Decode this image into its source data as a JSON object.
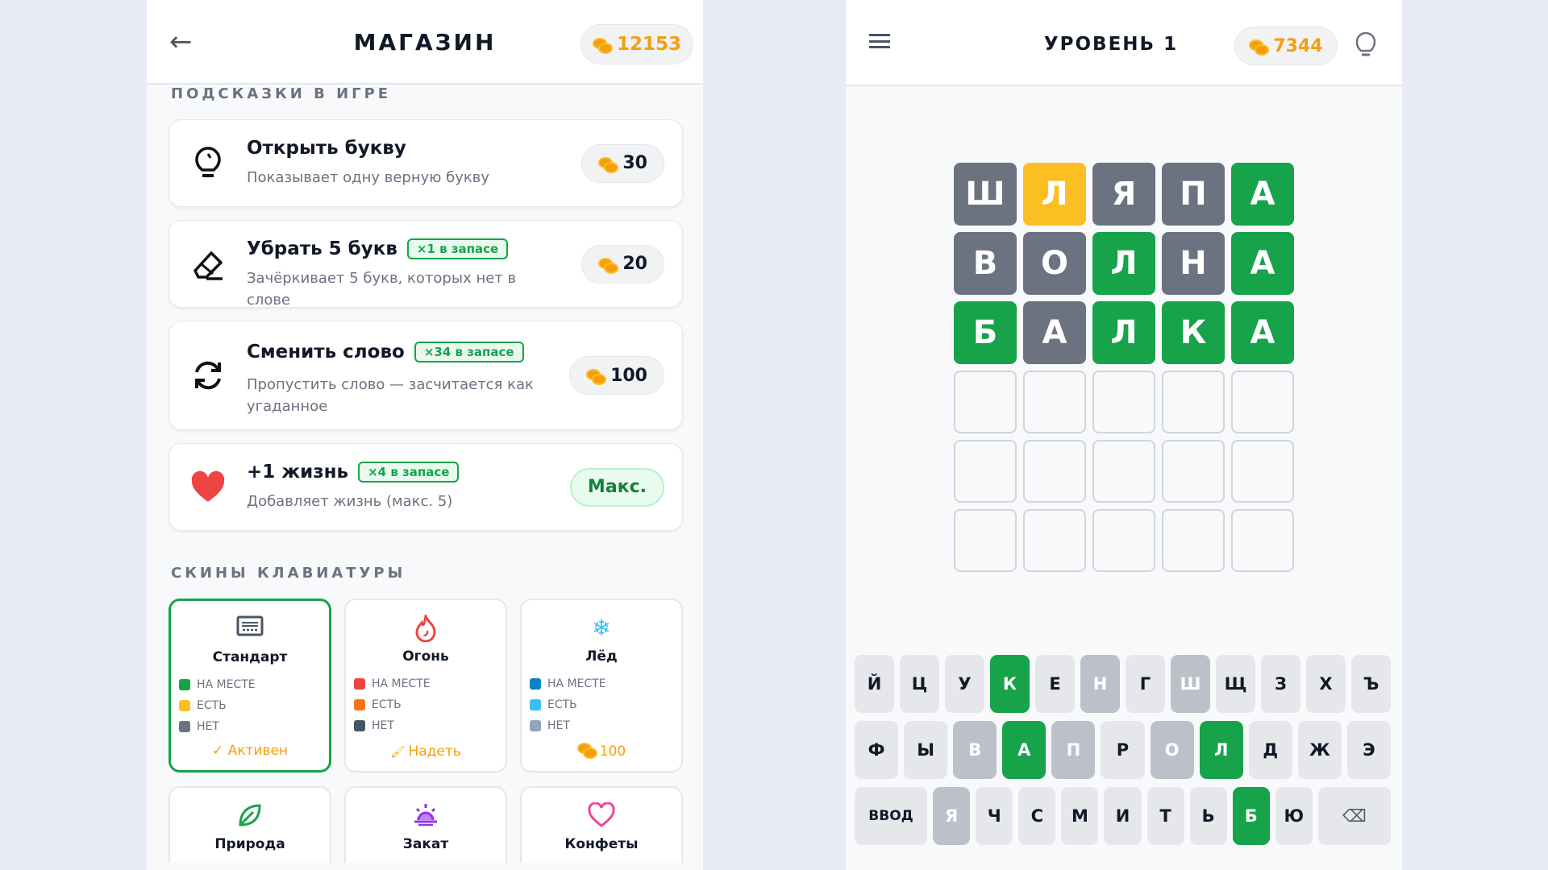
{
  "colors": {
    "correct": "#16a34a",
    "present": "#fbbf24",
    "absent": "#6b7280",
    "coin": "#f59e0b"
  },
  "shop": {
    "title": "МАГАЗИН",
    "coins": "12153",
    "back_icon": "arrow-left-icon",
    "hints_section": "ПОДСКАЗКИ В ИГРЕ",
    "hints": [
      {
        "icon": "lightbulb-icon",
        "title": "Открыть букву",
        "badge": "",
        "desc": "Показывает одну верную букву",
        "price": "30"
      },
      {
        "icon": "eraser-icon",
        "title": "Убрать 5 букв",
        "badge": "×1 в запасе",
        "desc": "Зачёркивает 5 букв, которых нет в слове",
        "price": "20"
      },
      {
        "icon": "refresh-icon",
        "title": "Сменить слово",
        "badge": "×34 в запасе",
        "desc": "Пропустить слово — засчитается как угаданное",
        "price": "100"
      },
      {
        "icon": "heart-icon",
        "title": "+1 жизнь",
        "badge": "×4 в запасе",
        "desc": "Добавляет жизнь (макс. 5)",
        "price": "Макс."
      }
    ],
    "skins_section": "СКИНЫ КЛАВИАТУРЫ",
    "legend": [
      "НА МЕСТЕ",
      "ЕСТЬ",
      "НЕТ"
    ],
    "skins": [
      {
        "name": "Стандарт",
        "icon": "keyboard-icon",
        "colors": [
          "#16a34a",
          "#fbbf24",
          "#6b7280"
        ],
        "action": "✓ Активен",
        "active": true
      },
      {
        "name": "Огонь",
        "icon": "fire-icon",
        "colors": [
          "#ef4444",
          "#f97316",
          "#475569"
        ],
        "action": "Надеть",
        "active": false
      },
      {
        "name": "Лёд",
        "icon": "snowflake-icon",
        "colors": [
          "#0284c7",
          "#38bdf8",
          "#94a3b8"
        ],
        "action": "100",
        "active": false
      },
      {
        "name": "Природа",
        "icon": "leaf-icon"
      },
      {
        "name": "Закат",
        "icon": "sunset-icon"
      },
      {
        "name": "Конфеты",
        "icon": "heart-outline-icon"
      }
    ]
  },
  "game": {
    "title": "УРОВЕНЬ 1",
    "coins": "7344",
    "board": [
      [
        [
          "Ш",
          "absent"
        ],
        [
          "Л",
          "present"
        ],
        [
          "Я",
          "absent"
        ],
        [
          "П",
          "absent"
        ],
        [
          "А",
          "correct"
        ]
      ],
      [
        [
          "В",
          "absent"
        ],
        [
          "О",
          "absent"
        ],
        [
          "Л",
          "correct"
        ],
        [
          "Н",
          "absent"
        ],
        [
          "А",
          "correct"
        ]
      ],
      [
        [
          "Б",
          "correct"
        ],
        [
          "А",
          "absent"
        ],
        [
          "Л",
          "correct"
        ],
        [
          "К",
          "correct"
        ],
        [
          "А",
          "correct"
        ]
      ],
      [
        [
          "",
          ""
        ],
        [
          "",
          ""
        ],
        [
          "",
          ""
        ],
        [
          "",
          ""
        ],
        [
          "",
          ""
        ]
      ],
      [
        [
          "",
          ""
        ],
        [
          "",
          ""
        ],
        [
          "",
          ""
        ],
        [
          "",
          ""
        ],
        [
          "",
          ""
        ]
      ],
      [
        [
          "",
          ""
        ],
        [
          "",
          ""
        ],
        [
          "",
          ""
        ],
        [
          "",
          ""
        ],
        [
          "",
          ""
        ]
      ]
    ],
    "keyboard": [
      [
        [
          "Й",
          ""
        ],
        [
          "Ц",
          ""
        ],
        [
          "У",
          ""
        ],
        [
          "К",
          "correct"
        ],
        [
          "Е",
          ""
        ],
        [
          "Н",
          "absent"
        ],
        [
          "Г",
          ""
        ],
        [
          "Ш",
          "absent"
        ],
        [
          "Щ",
          ""
        ],
        [
          "З",
          ""
        ],
        [
          "Х",
          ""
        ],
        [
          "Ъ",
          ""
        ]
      ],
      [
        [
          "Ф",
          ""
        ],
        [
          "Ы",
          ""
        ],
        [
          "В",
          "absent"
        ],
        [
          "А",
          "correct"
        ],
        [
          "П",
          "absent"
        ],
        [
          "Р",
          ""
        ],
        [
          "О",
          "absent"
        ],
        [
          "Л",
          "correct"
        ],
        [
          "Д",
          ""
        ],
        [
          "Ж",
          ""
        ],
        [
          "Э",
          ""
        ]
      ],
      [
        [
          "ВВОД",
          ""
        ],
        [
          "Я",
          "absent"
        ],
        [
          "Ч",
          ""
        ],
        [
          "С",
          ""
        ],
        [
          "М",
          ""
        ],
        [
          "И",
          ""
        ],
        [
          "Т",
          ""
        ],
        [
          "Ь",
          ""
        ],
        [
          "Б",
          "correct"
        ],
        [
          "Ю",
          ""
        ],
        [
          "⌫",
          ""
        ]
      ]
    ]
  }
}
